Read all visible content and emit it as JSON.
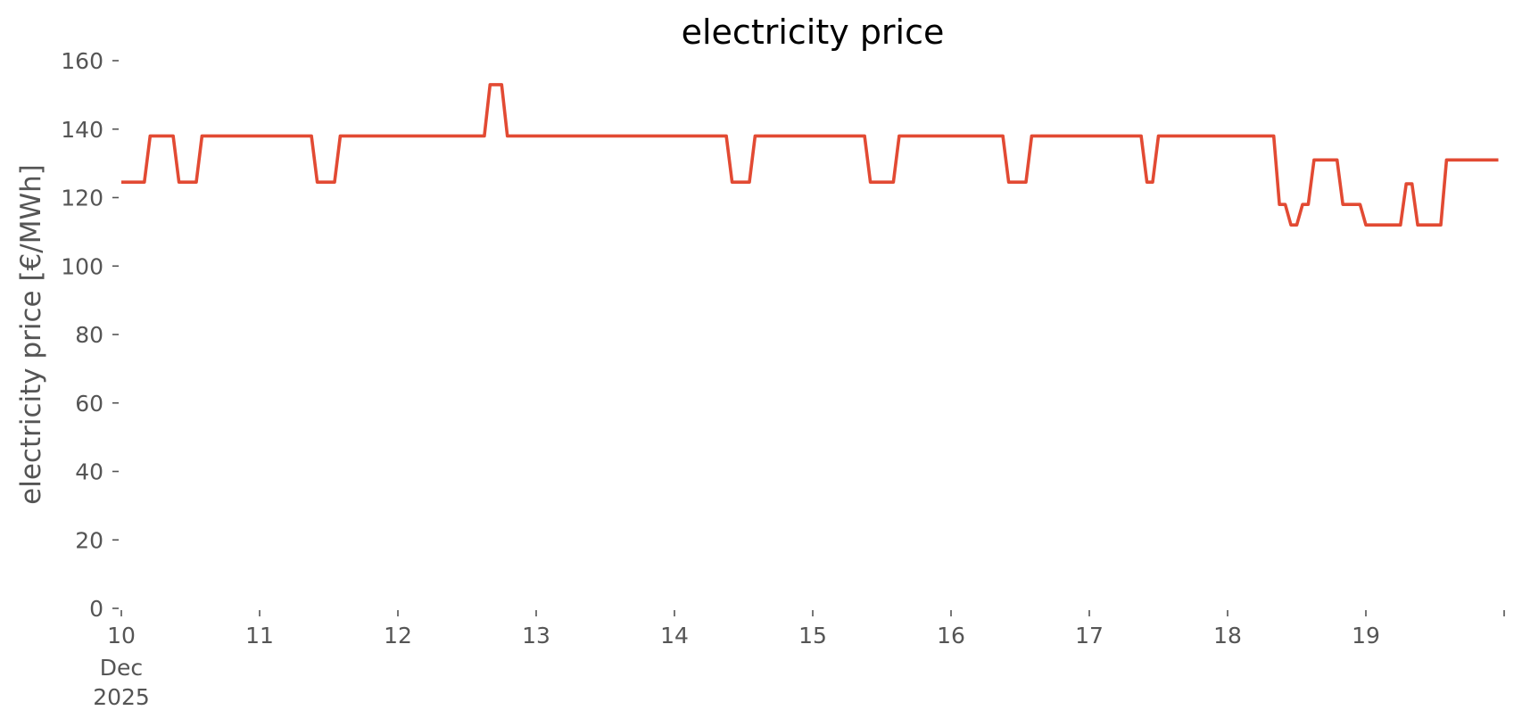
{
  "chart_data": {
    "type": "line",
    "title": "electricity price",
    "xlabel": "",
    "ylabel": "electricity price [€/MWh]",
    "ylim": [
      0,
      160
    ],
    "xlim": [
      "2025-12-10 00:00",
      "2025-12-19 23:00"
    ],
    "yticks": [
      0,
      20,
      40,
      60,
      80,
      100,
      120,
      140,
      160
    ],
    "xticks": [
      {
        "date": "2025-12-10",
        "label": "10",
        "sublabels": [
          "Dec",
          "2025"
        ]
      },
      {
        "date": "2025-12-11",
        "label": "11"
      },
      {
        "date": "2025-12-12",
        "label": "12"
      },
      {
        "date": "2025-12-13",
        "label": "13"
      },
      {
        "date": "2025-12-14",
        "label": "14"
      },
      {
        "date": "2025-12-15",
        "label": "15"
      },
      {
        "date": "2025-12-16",
        "label": "16"
      },
      {
        "date": "2025-12-17",
        "label": "17"
      },
      {
        "date": "2025-12-18",
        "label": "18"
      },
      {
        "date": "2025-12-19",
        "label": "19"
      },
      {
        "date": "2025-12-20",
        "label": ""
      }
    ],
    "grid": false,
    "color": "#e24a33",
    "series": [
      {
        "name": "",
        "x": [
          "2025-12-10 00:00",
          "2025-12-10 04:00",
          "2025-12-10 05:00",
          "2025-12-10 09:00",
          "2025-12-10 10:00",
          "2025-12-10 13:00",
          "2025-12-10 14:00",
          "2025-12-11 09:00",
          "2025-12-11 10:00",
          "2025-12-11 13:00",
          "2025-12-11 14:00",
          "2025-12-12 15:00",
          "2025-12-12 16:00",
          "2025-12-12 18:00",
          "2025-12-12 19:00",
          "2025-12-14 09:00",
          "2025-12-14 10:00",
          "2025-12-14 13:00",
          "2025-12-14 14:00",
          "2025-12-15 09:00",
          "2025-12-15 10:00",
          "2025-12-15 14:00",
          "2025-12-15 15:00",
          "2025-12-16 09:00",
          "2025-12-16 10:00",
          "2025-12-16 13:00",
          "2025-12-16 14:00",
          "2025-12-17 09:00",
          "2025-12-17 10:00",
          "2025-12-17 11:00",
          "2025-12-17 12:00",
          "2025-12-18 08:00",
          "2025-12-18 09:00",
          "2025-12-18 10:00",
          "2025-12-18 11:00",
          "2025-12-18 12:00",
          "2025-12-18 13:00",
          "2025-12-18 14:00",
          "2025-12-18 15:00",
          "2025-12-18 19:00",
          "2025-12-18 20:00",
          "2025-12-18 23:00",
          "2025-12-19 00:00",
          "2025-12-19 06:00",
          "2025-12-19 07:00",
          "2025-12-19 08:00",
          "2025-12-19 09:00",
          "2025-12-19 13:00",
          "2025-12-19 14:00",
          "2025-12-19 23:00"
        ],
        "values": [
          124.5,
          124.5,
          138,
          138,
          124.5,
          124.5,
          138,
          138,
          124.5,
          124.5,
          138,
          138,
          153,
          153,
          138,
          138,
          124.5,
          124.5,
          138,
          138,
          124.5,
          124.5,
          138,
          138,
          124.5,
          124.5,
          138,
          138,
          124.5,
          124.5,
          138,
          138,
          118,
          118,
          112,
          112,
          118,
          118,
          131,
          131,
          118,
          118,
          112,
          112,
          124,
          124,
          112,
          112,
          131,
          131
        ]
      }
    ]
  }
}
